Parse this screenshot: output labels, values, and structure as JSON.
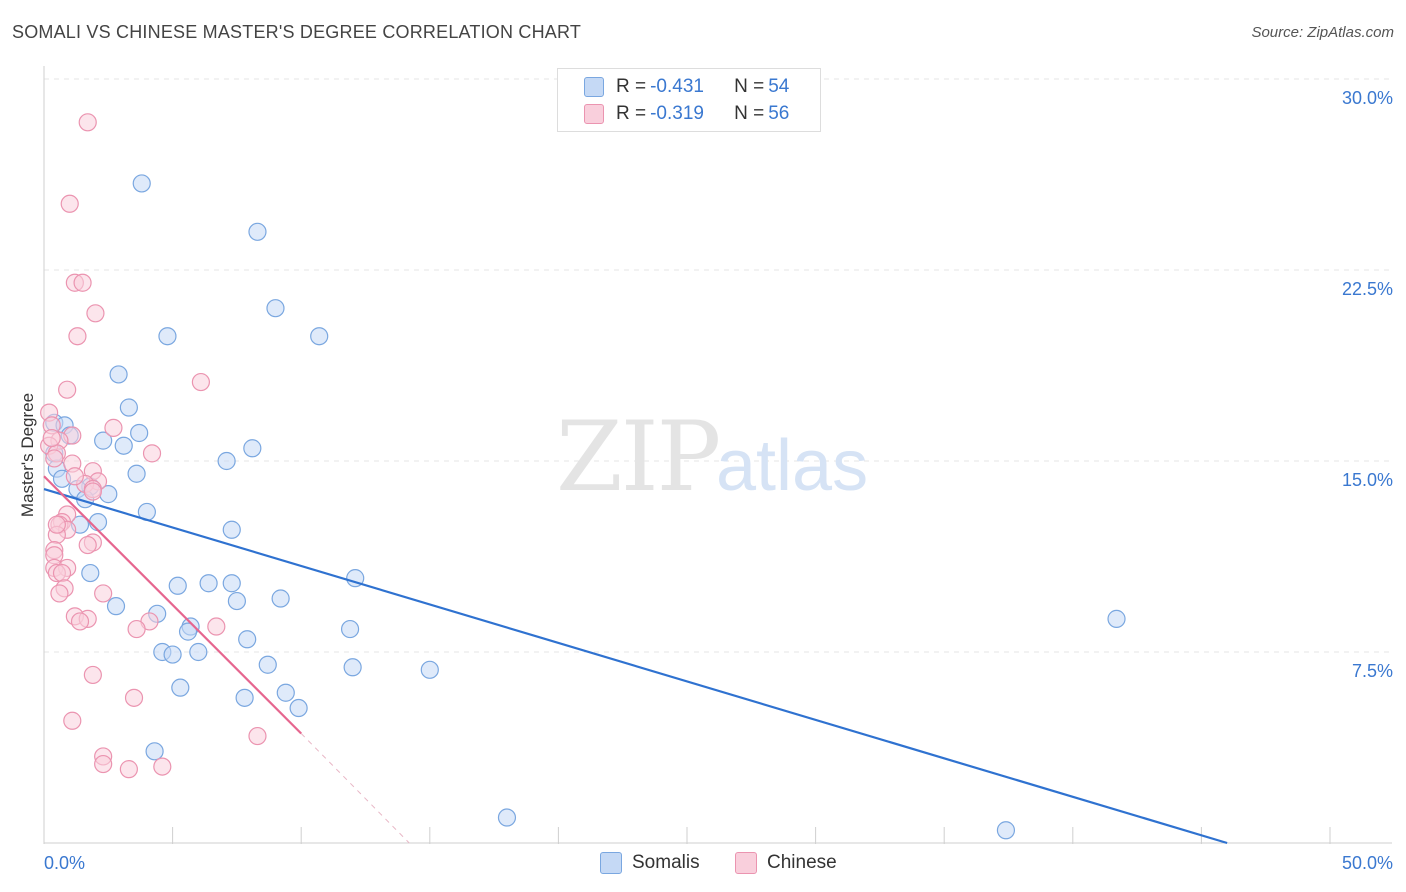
{
  "chart_data": {
    "type": "scatter",
    "title": "SOMALI VS CHINESE MASTER'S DEGREE CORRELATION CHART",
    "source": "Source: ZipAtlas.com",
    "ylabel": "Master's Degree",
    "xlim": [
      0,
      50
    ],
    "ylim": [
      0,
      30
    ],
    "x_tick_labels": [
      "0.0%",
      "50.0%"
    ],
    "y_ticks": [
      7.5,
      15.0,
      22.5,
      30.0
    ],
    "y_tick_labels": [
      "7.5%",
      "15.0%",
      "22.5%",
      "30.0%"
    ],
    "watermark": {
      "part1": "ZIP",
      "part2": "atlas"
    },
    "legend": [
      {
        "r_label": "R = ",
        "r_value": "-0.431",
        "n_label": "N = ",
        "n_value": "54"
      },
      {
        "r_label": "R = ",
        "r_value": "-0.319",
        "n_label": "N = ",
        "n_value": "56"
      }
    ],
    "series": [
      {
        "name": "Somalis",
        "color": "#7aa7e0",
        "fill": "#c5d9f5",
        "line_color": "#2f72d0",
        "trend": {
          "x": [
            0,
            46
          ],
          "y": [
            13.9,
            0
          ]
        },
        "points": [
          [
            3.8,
            25.9
          ],
          [
            8.3,
            24.0
          ],
          [
            9.0,
            21.0
          ],
          [
            10.7,
            19.9
          ],
          [
            4.8,
            19.9
          ],
          [
            2.9,
            18.4
          ],
          [
            3.3,
            17.1
          ],
          [
            0.4,
            16.5
          ],
          [
            0.8,
            16.4
          ],
          [
            1.0,
            16.0
          ],
          [
            2.3,
            15.8
          ],
          [
            3.7,
            16.1
          ],
          [
            3.1,
            15.6
          ],
          [
            8.1,
            15.5
          ],
          [
            0.4,
            15.3
          ],
          [
            7.1,
            15.0
          ],
          [
            0.5,
            14.7
          ],
          [
            3.6,
            14.5
          ],
          [
            0.7,
            14.3
          ],
          [
            1.8,
            14.0
          ],
          [
            1.3,
            13.9
          ],
          [
            2.5,
            13.7
          ],
          [
            1.6,
            13.5
          ],
          [
            4.0,
            13.0
          ],
          [
            1.4,
            12.5
          ],
          [
            2.1,
            12.6
          ],
          [
            7.3,
            12.3
          ],
          [
            1.8,
            10.6
          ],
          [
            12.1,
            10.4
          ],
          [
            5.2,
            10.1
          ],
          [
            6.4,
            10.2
          ],
          [
            7.3,
            10.2
          ],
          [
            7.5,
            9.5
          ],
          [
            9.2,
            9.6
          ],
          [
            2.8,
            9.3
          ],
          [
            4.4,
            9.0
          ],
          [
            5.7,
            8.5
          ],
          [
            5.6,
            8.3
          ],
          [
            7.9,
            8.0
          ],
          [
            11.9,
            8.4
          ],
          [
            41.7,
            8.8
          ],
          [
            4.6,
            7.5
          ],
          [
            5.0,
            7.4
          ],
          [
            6.0,
            7.5
          ],
          [
            8.7,
            7.0
          ],
          [
            12.0,
            6.9
          ],
          [
            15.0,
            6.8
          ],
          [
            5.3,
            6.1
          ],
          [
            9.4,
            5.9
          ],
          [
            7.8,
            5.7
          ],
          [
            9.9,
            5.3
          ],
          [
            4.3,
            3.6
          ],
          [
            18.0,
            1.0
          ],
          [
            37.4,
            0.5
          ]
        ]
      },
      {
        "name": "Chinese",
        "color": "#eb94b0",
        "fill": "#f9cfdc",
        "line_color": "#e6668f",
        "trend": {
          "x": [
            0,
            10
          ],
          "y": [
            14.4,
            4.3
          ]
        },
        "trend_ext": {
          "x": [
            10,
            14.2
          ],
          "y": [
            4.3,
            0
          ]
        },
        "points": [
          [
            1.7,
            28.3
          ],
          [
            1.0,
            25.1
          ],
          [
            1.2,
            22.0
          ],
          [
            1.5,
            22.0
          ],
          [
            2.0,
            20.8
          ],
          [
            1.3,
            19.9
          ],
          [
            6.1,
            18.1
          ],
          [
            0.9,
            17.8
          ],
          [
            0.2,
            16.9
          ],
          [
            0.3,
            16.4
          ],
          [
            2.7,
            16.3
          ],
          [
            1.1,
            16.0
          ],
          [
            0.6,
            15.8
          ],
          [
            0.2,
            15.6
          ],
          [
            0.5,
            15.3
          ],
          [
            4.2,
            15.3
          ],
          [
            0.4,
            15.1
          ],
          [
            1.1,
            14.9
          ],
          [
            1.9,
            14.6
          ],
          [
            2.1,
            14.2
          ],
          [
            1.6,
            14.1
          ],
          [
            1.9,
            13.9
          ],
          [
            1.9,
            13.8
          ],
          [
            0.9,
            12.9
          ],
          [
            0.7,
            12.6
          ],
          [
            0.6,
            12.5
          ],
          [
            0.9,
            12.3
          ],
          [
            0.5,
            12.1
          ],
          [
            1.9,
            11.8
          ],
          [
            1.7,
            11.7
          ],
          [
            0.4,
            11.5
          ],
          [
            0.4,
            11.3
          ],
          [
            0.4,
            10.8
          ],
          [
            0.9,
            10.8
          ],
          [
            0.5,
            10.6
          ],
          [
            0.7,
            10.6
          ],
          [
            0.8,
            10.0
          ],
          [
            0.6,
            9.8
          ],
          [
            2.3,
            9.8
          ],
          [
            1.2,
            8.9
          ],
          [
            1.7,
            8.8
          ],
          [
            1.4,
            8.7
          ],
          [
            4.1,
            8.7
          ],
          [
            3.6,
            8.4
          ],
          [
            6.7,
            8.5
          ],
          [
            1.9,
            6.6
          ],
          [
            3.5,
            5.7
          ],
          [
            1.1,
            4.8
          ],
          [
            8.3,
            4.2
          ],
          [
            2.3,
            3.4
          ],
          [
            2.3,
            3.1
          ],
          [
            4.6,
            3.0
          ],
          [
            3.3,
            2.9
          ],
          [
            0.5,
            12.5
          ],
          [
            1.2,
            14.4
          ],
          [
            0.3,
            15.9
          ]
        ]
      }
    ]
  }
}
